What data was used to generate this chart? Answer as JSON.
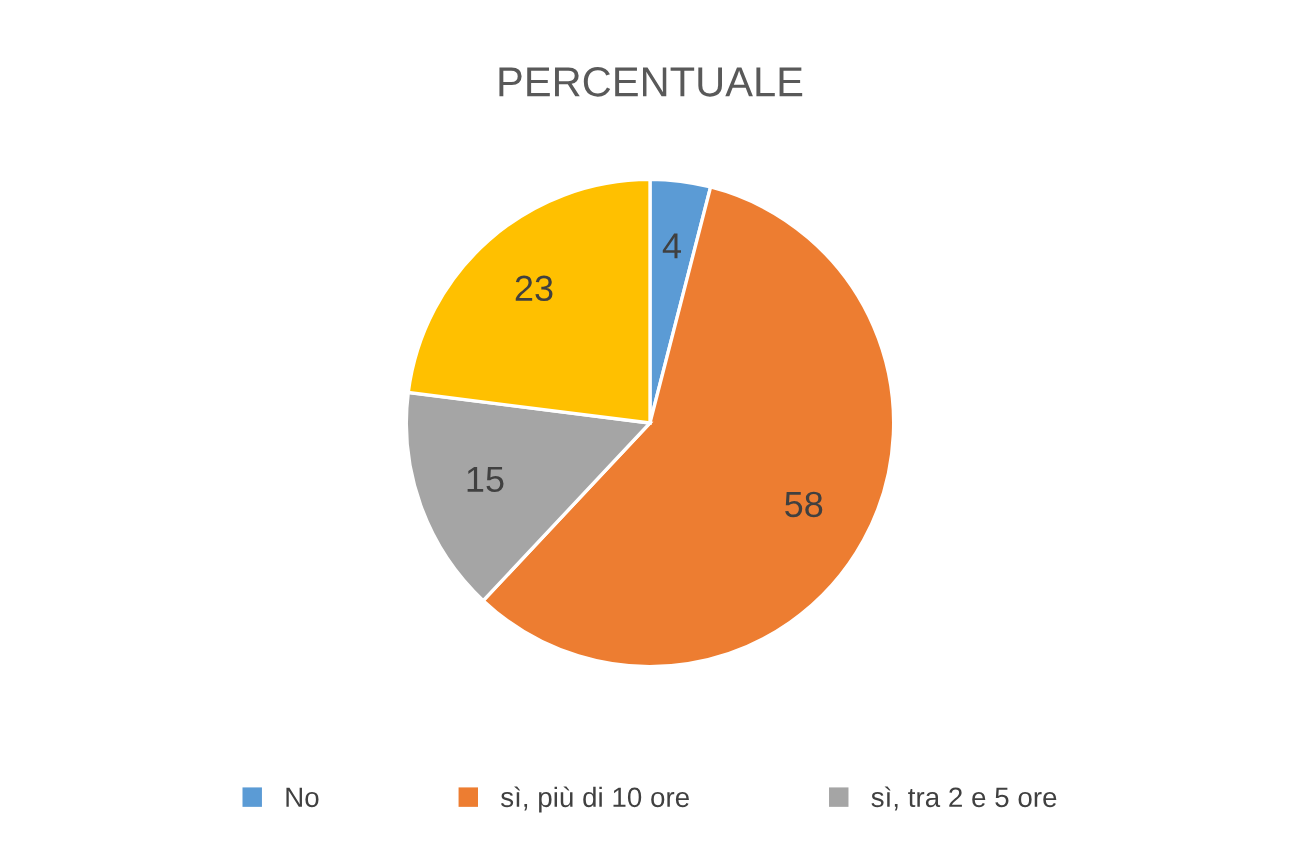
{
  "chart_data": {
    "type": "pie",
    "title": "PERCENTUALE",
    "categories": [
      "No",
      "sì, più di 10 ore",
      "sì, tra 2 e 5 ore",
      null
    ],
    "values": [
      4,
      58,
      15,
      23
    ],
    "colors": [
      "#5b9bd5",
      "#ed7d31",
      "#a5a5a5",
      "#ffc000"
    ],
    "data_labels": true,
    "legend": "bottom"
  }
}
